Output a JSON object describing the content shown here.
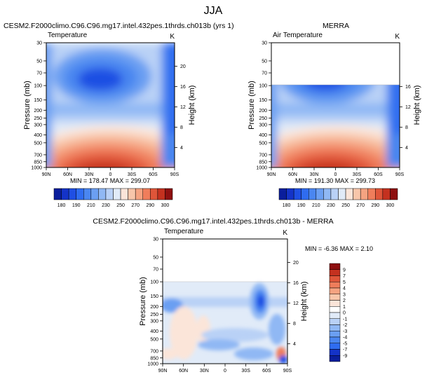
{
  "figure_title": "JJA",
  "chart_data": [
    {
      "type": "heatmap",
      "title": "CESM2.F2000climo.C96.C96.mg17.intel.432pes.1thrds.ch013b (yrs 1)",
      "variable_label": "Temperature",
      "units_label": "K",
      "ylabel": "Pressure (mb)",
      "ylabel_right": "Height (km)",
      "x_ticks": [
        "90N",
        "60N",
        "30N",
        "0",
        "30S",
        "60S",
        "90S"
      ],
      "y_ticks": [
        "30",
        "50",
        "70",
        "100",
        "150",
        "200",
        "250",
        "300",
        "400",
        "500",
        "700",
        "850",
        "1000"
      ],
      "y_ticks_right": [
        "20",
        "16",
        "12",
        "8",
        "4"
      ],
      "stats_text": "MIN = 178.47   MAX = 299.07",
      "min": 178.47,
      "max": 299.07,
      "has_data_above_100mb": true
    },
    {
      "type": "heatmap",
      "title": "MERRA",
      "variable_label": "Air Temperature",
      "units_label": "K",
      "ylabel": "Pressure (mb)",
      "ylabel_right": "Height (km)",
      "x_ticks": [
        "90N",
        "60N",
        "30N",
        "0",
        "30S",
        "60S",
        "90S"
      ],
      "y_ticks": [
        "30",
        "50",
        "70",
        "100",
        "150",
        "200",
        "250",
        "300",
        "400",
        "500",
        "700",
        "850",
        "1000"
      ],
      "y_ticks_right": [
        "16",
        "12",
        "8",
        "4"
      ],
      "stats_text": "MIN = 191.30   MAX = 299.73",
      "min": 191.3,
      "max": 299.73,
      "has_data_above_100mb": false
    },
    {
      "type": "heatmap",
      "title": "CESM2.F2000climo.C96.C96.mg17.intel.432pes.1thrds.ch013b - MERRA",
      "variable_label": "Temperature",
      "units_label": "K",
      "ylabel": "Pressure (mb)",
      "ylabel_right": "Height (km)",
      "x_ticks": [
        "90N",
        "60N",
        "30N",
        "0",
        "30S",
        "60S",
        "90S"
      ],
      "y_ticks": [
        "30",
        "50",
        "70",
        "100",
        "150",
        "200",
        "250",
        "300",
        "400",
        "500",
        "700",
        "850",
        "1000"
      ],
      "y_ticks_right": [
        "20",
        "16",
        "12",
        "8",
        "4"
      ],
      "stats_text": "MIN = -6.36  MAX =   2.10",
      "min": -6.36,
      "max": 2.1,
      "has_data_above_100mb": false
    }
  ],
  "colorbar_abs": {
    "labels": [
      "180",
      "190",
      "210",
      "230",
      "250",
      "270",
      "290",
      "300"
    ],
    "levels": [
      180,
      185,
      190,
      200,
      210,
      220,
      230,
      240,
      250,
      260,
      270,
      280,
      290,
      295,
      300
    ],
    "colors": [
      "#0a1e9c",
      "#1433c8",
      "#1f4fe3",
      "#2f6cf0",
      "#4a86f0",
      "#6b9ff2",
      "#90b8f4",
      "#b9d1f6",
      "#e1ebf8",
      "#fbe5d9",
      "#f8c6aa",
      "#f5a381",
      "#ef7d5b",
      "#df5539",
      "#c4311f",
      "#8e1010"
    ]
  },
  "colorbar_diff": {
    "labels": [
      "9",
      "7",
      "5",
      "4",
      "3",
      "2",
      "1",
      "0",
      "-1",
      "-2",
      "-3",
      "-4",
      "-5",
      "-7",
      "-9"
    ],
    "colors": [
      "#8e1010",
      "#c4311f",
      "#df5539",
      "#ef7d5b",
      "#f5a381",
      "#f8c6aa",
      "#fbe5d9",
      "#ffffff",
      "#e1ebf8",
      "#b9d1f6",
      "#90b8f4",
      "#6b9ff2",
      "#4a86f0",
      "#2f6cf0",
      "#1433c8",
      "#0a1e9c"
    ]
  }
}
